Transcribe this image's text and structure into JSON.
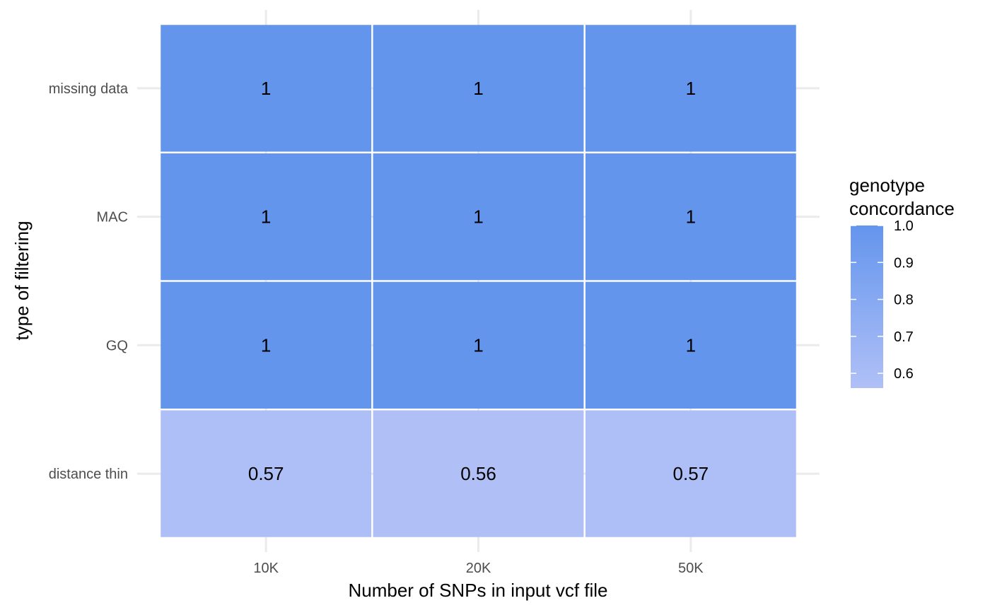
{
  "chart_data": {
    "type": "heatmap",
    "title": "",
    "xlabel": "Number of SNPs in input vcf file",
    "ylabel": "type of filtering",
    "x_categories": [
      "10K",
      "20K",
      "50K"
    ],
    "y_categories": [
      "missing data",
      "MAC",
      "GQ",
      "distance thin"
    ],
    "values": [
      [
        1.0,
        1.0,
        1.0
      ],
      [
        1.0,
        1.0,
        1.0
      ],
      [
        1.0,
        1.0,
        1.0
      ],
      [
        0.57,
        0.56,
        0.57
      ]
    ],
    "cell_labels": [
      [
        "1",
        "1",
        "1"
      ],
      [
        "1",
        "1",
        "1"
      ],
      [
        "1",
        "1",
        "1"
      ],
      [
        "0.57",
        "0.56",
        "0.57"
      ]
    ],
    "legend": {
      "title_lines": [
        "genotype",
        "concordance"
      ],
      "ticks": [
        "1.0",
        "0.9",
        "0.8",
        "0.7",
        "0.6"
      ],
      "tick_values": [
        1.0,
        0.9,
        0.8,
        0.7,
        0.6
      ],
      "range": [
        0.56,
        1.0
      ],
      "placement": "right"
    },
    "colors": {
      "high": "#6495ed",
      "low": "#b0c0f7",
      "cell_border": "#ffffff",
      "grid": "#ebebeb",
      "background": "#ffffff"
    },
    "grid": true
  }
}
